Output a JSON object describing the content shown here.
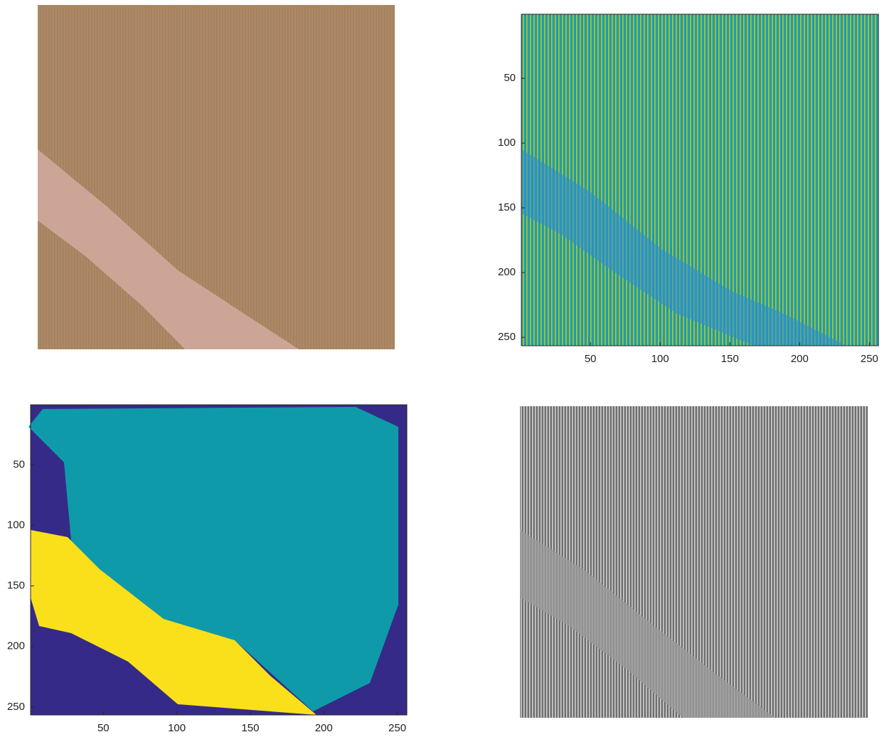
{
  "chart_data": [
    {
      "type": "image"
    },
    {
      "type": "image",
      "xlim": [
        0.5,
        256.5
      ],
      "ylim": [
        0.5,
        256.5
      ],
      "xticks": [
        50,
        100,
        150,
        200,
        250
      ],
      "yticks": [
        50,
        100,
        150,
        200,
        250
      ]
    },
    {
      "type": "image",
      "xlim": [
        0.5,
        256.5
      ],
      "ylim": [
        0.5,
        256.5
      ],
      "xticks": [
        50,
        100,
        150,
        200,
        250
      ],
      "yticks": [
        50,
        100,
        150,
        200,
        250
      ]
    },
    {
      "type": "image"
    }
  ]
}
